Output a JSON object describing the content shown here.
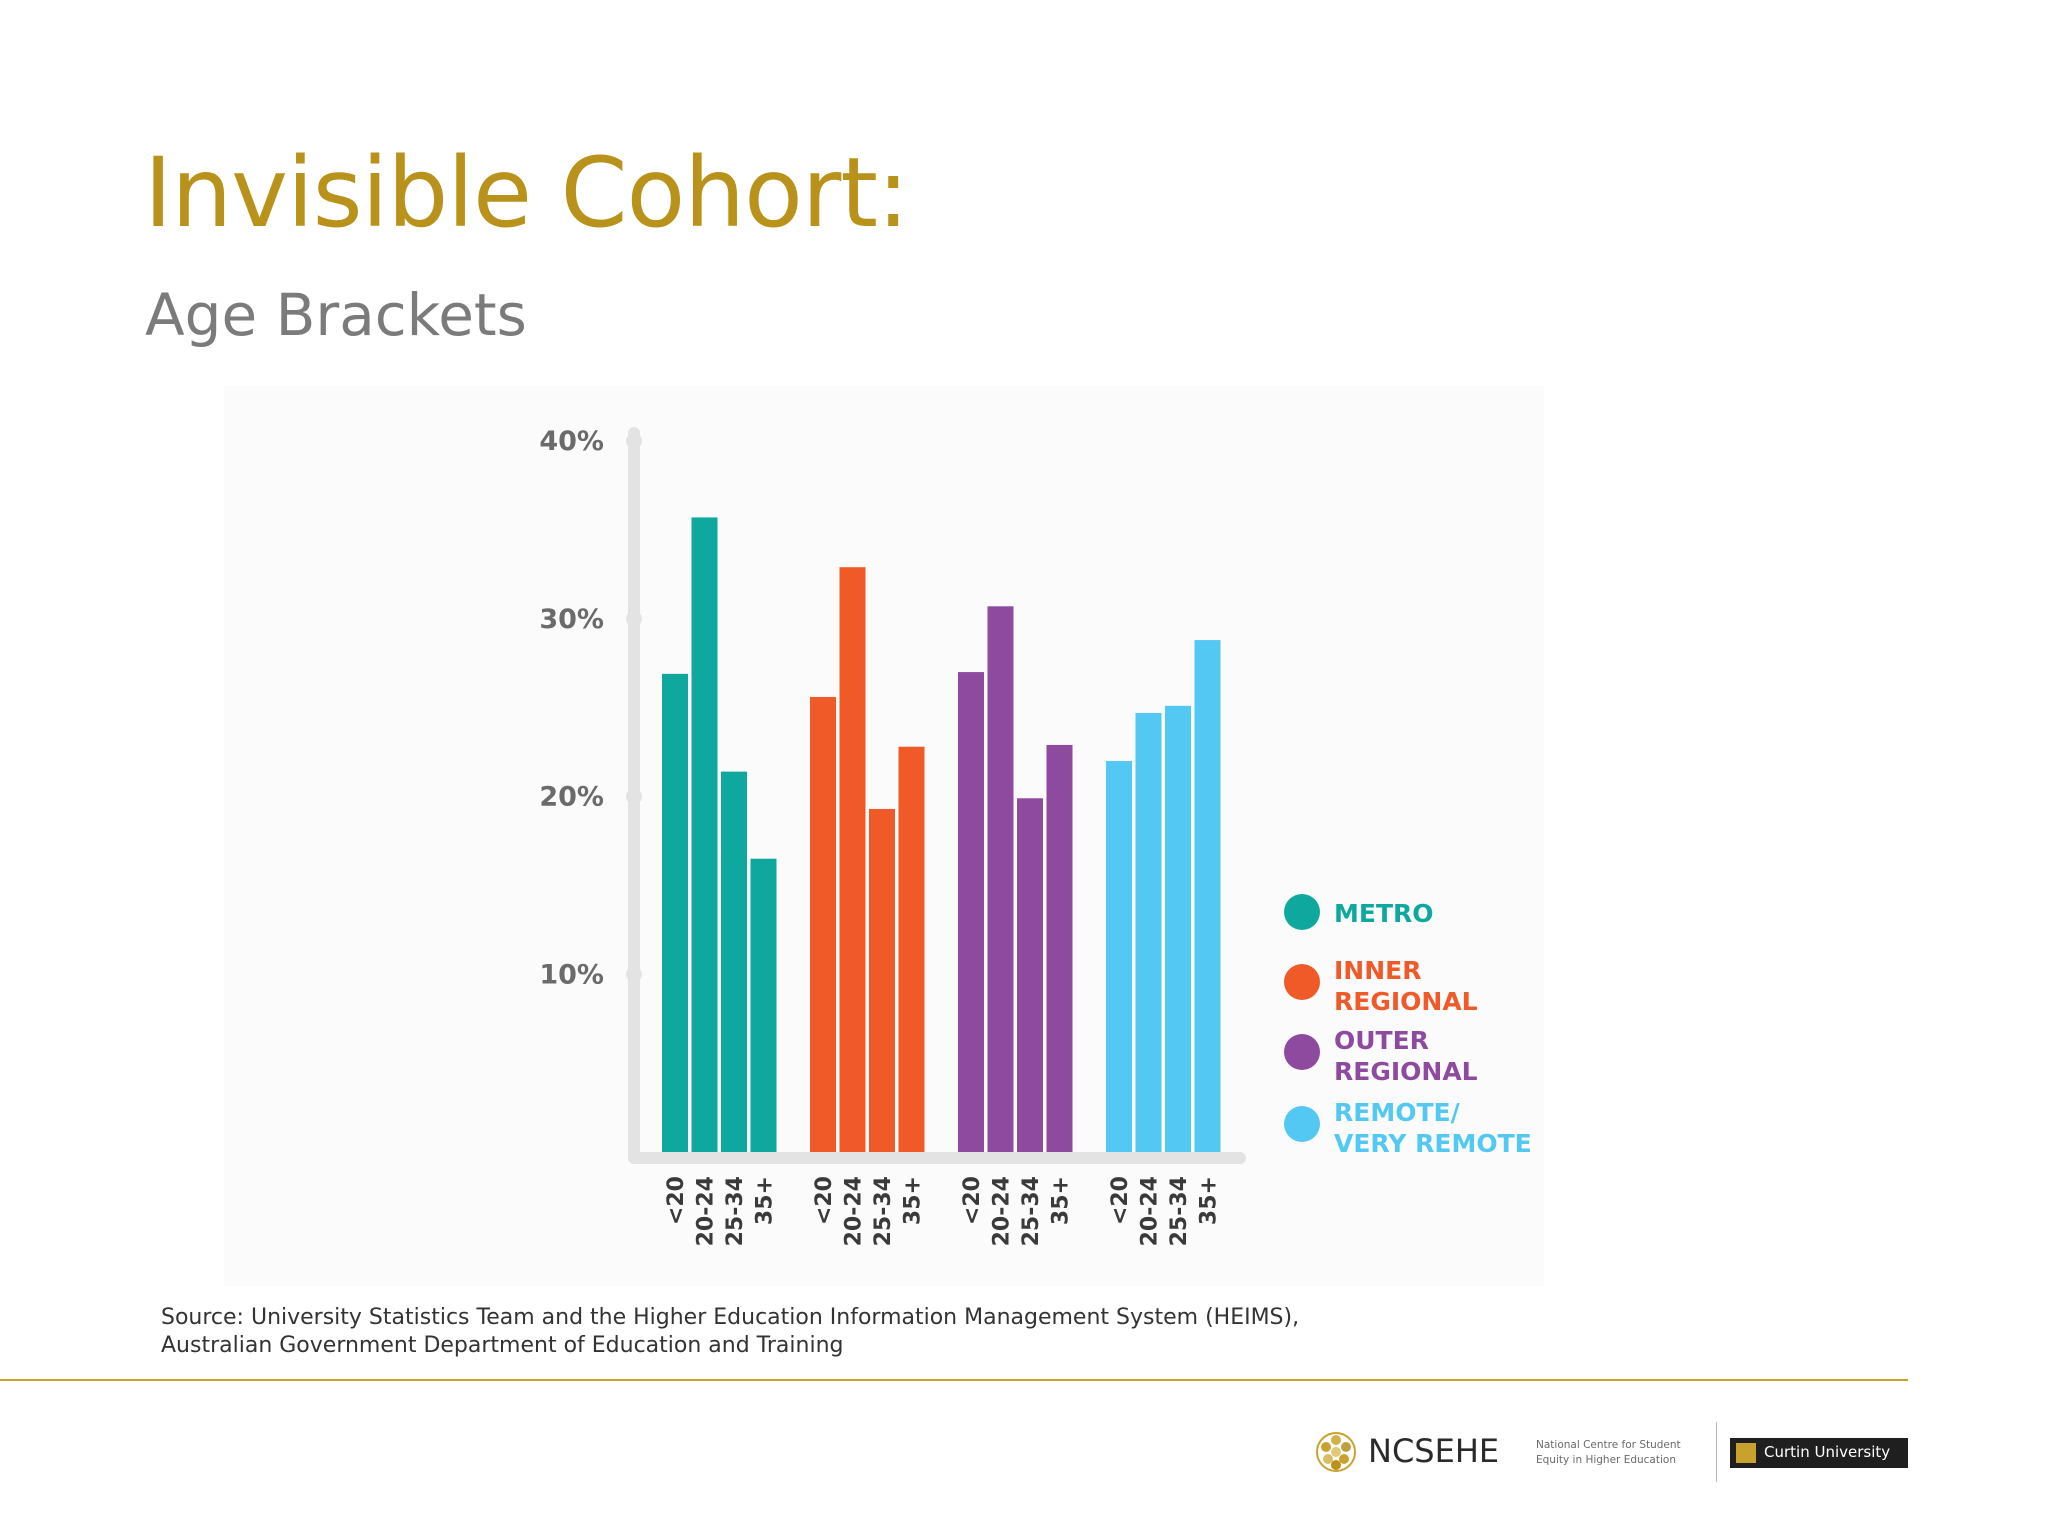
{
  "slide": {
    "title": "Invisible Cohort:",
    "subtitle": "Age Brackets"
  },
  "source": {
    "line1": "Source: University Statistics Team and the Higher Education Information Management System (HEIMS),",
    "line2": "Australian Government Department of Education and Training"
  },
  "footer": {
    "ncsehe_name": "NCSEHE",
    "ncsehe_tag_line1": "National Centre for Student",
    "ncsehe_tag_line2": "Equity in Higher Education",
    "curtin_name": "Curtin University"
  },
  "colors": {
    "title": "#b8921a",
    "subtitle": "#7b7b7b",
    "axis": "#e3e3e3",
    "tick_label": "#6b6b6b",
    "rule": "#c9a22e"
  },
  "chart_data": {
    "type": "bar",
    "title": "",
    "xlabel": "",
    "ylabel": "",
    "ylim": [
      0,
      40
    ],
    "y_ticks": [
      {
        "value": 10,
        "label": "10%"
      },
      {
        "value": 20,
        "label": "20%"
      },
      {
        "value": 30,
        "label": "30%"
      },
      {
        "value": 40,
        "label": "40%"
      }
    ],
    "grid": false,
    "legend_position": "right",
    "categories": [
      "<20",
      "20-24",
      "25-34",
      "35+"
    ],
    "series": [
      {
        "name": "METRO",
        "legend_lines": [
          "METRO"
        ],
        "color": "#0fa89e",
        "values": [
          26.9,
          35.7,
          21.4,
          16.5
        ]
      },
      {
        "name": "INNER REGIONAL",
        "legend_lines": [
          "INNER",
          "REGIONAL"
        ],
        "color": "#f05a28",
        "values": [
          25.6,
          32.9,
          19.3,
          22.8
        ]
      },
      {
        "name": "OUTER REGIONAL",
        "legend_lines": [
          "OUTER",
          "REGIONAL"
        ],
        "color": "#8e4a9f",
        "values": [
          27.0,
          30.7,
          19.9,
          22.9
        ]
      },
      {
        "name": "REMOTE/ VERY REMOTE",
        "legend_lines": [
          "REMOTE/",
          "VERY REMOTE"
        ],
        "color": "#52c8f2",
        "values": [
          22.0,
          24.7,
          25.1,
          28.8
        ]
      }
    ]
  }
}
